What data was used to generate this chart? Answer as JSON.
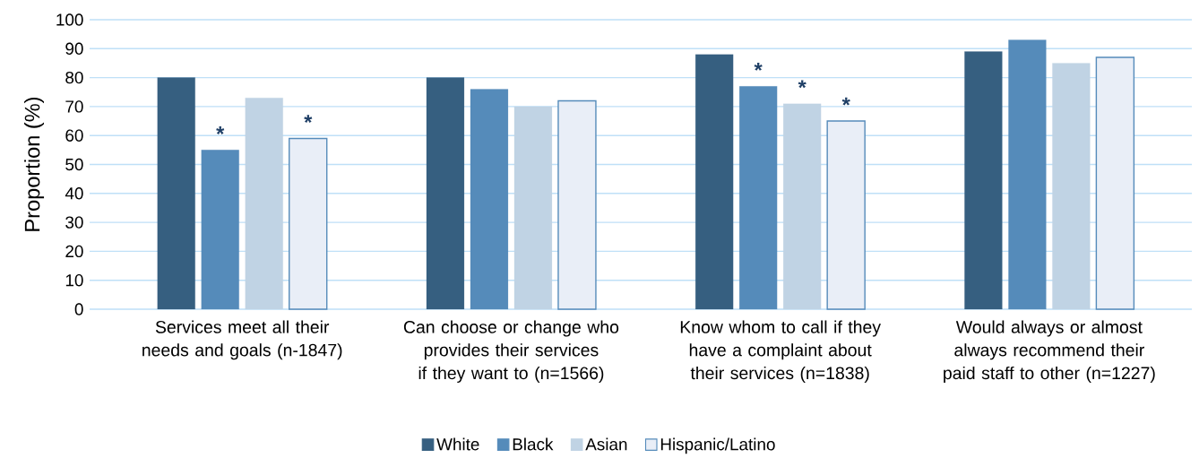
{
  "chart_data": {
    "type": "bar",
    "ylabel": "Proportion (%)",
    "categories": [
      "Services meet all their needs and goals (n-1847)",
      "Can choose or change who provides their services if they want to (n=1566)",
      "Know whom to call if they have a complaint about their services (n=1838)",
      "Would always or almost always recommend their paid staff to other (n=1227)"
    ],
    "series": [
      {
        "name": "White",
        "color": "#365f80",
        "values": [
          80,
          80,
          88,
          89
        ]
      },
      {
        "name": "Black",
        "color": "#558bba",
        "values": [
          55,
          76,
          77,
          93
        ],
        "value_labels": [
          "*",
          null,
          "*",
          null
        ]
      },
      {
        "name": "Asian",
        "color": "#c0d3e4",
        "values": [
          73,
          70,
          71,
          85
        ],
        "value_labels": [
          null,
          null,
          "*",
          null
        ]
      },
      {
        "name": "Hispanic/Latino",
        "color": "#e9eef7",
        "values": [
          59,
          72,
          65,
          87
        ],
        "value_labels": [
          "*",
          null,
          "*",
          null
        ]
      }
    ],
    "ylim": [
      0,
      100
    ],
    "yticks": [
      0,
      10,
      20,
      30,
      40,
      50,
      60,
      70,
      80,
      90,
      100
    ],
    "grid": "y",
    "legend": "bottom"
  }
}
